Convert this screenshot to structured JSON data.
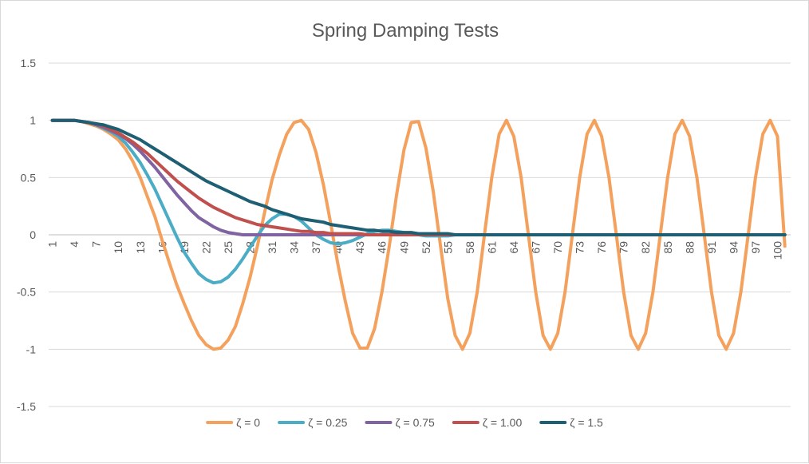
{
  "chart_data": {
    "type": "line",
    "title": "Spring Damping Tests",
    "xlabel": "",
    "ylabel": "",
    "ylim": [
      -1.5,
      1.5
    ],
    "yticks": [
      -1.5,
      -1,
      -0.5,
      0,
      0.5,
      1,
      1.5
    ],
    "ytick_labels": [
      "-1.5",
      "-1",
      "-0.5",
      "0",
      "0.5",
      "1",
      "1.5"
    ],
    "x": [
      1,
      2,
      3,
      4,
      5,
      6,
      7,
      8,
      9,
      10,
      11,
      12,
      13,
      14,
      15,
      16,
      17,
      18,
      19,
      20,
      21,
      22,
      23,
      24,
      25,
      26,
      27,
      28,
      29,
      30,
      31,
      32,
      33,
      34,
      35,
      36,
      37,
      38,
      39,
      40,
      41,
      42,
      43,
      44,
      45,
      46,
      47,
      48,
      49,
      50,
      51,
      52,
      53,
      54,
      55,
      56,
      57,
      58,
      59,
      60,
      61,
      62,
      63,
      64,
      65,
      66,
      67,
      68,
      69,
      70,
      71,
      72,
      73,
      74,
      75,
      76,
      77,
      78,
      79,
      80,
      81,
      82,
      83,
      84,
      85,
      86,
      87,
      88,
      89,
      90,
      91,
      92,
      93,
      94,
      95,
      96,
      97,
      98,
      99,
      100,
      101
    ],
    "xtick_labels": [
      "1",
      "4",
      "7",
      "10",
      "13",
      "16",
      "19",
      "22",
      "25",
      "28",
      "31",
      "34",
      "37",
      "40",
      "43",
      "46",
      "49",
      "52",
      "55",
      "58",
      "61",
      "64",
      "67",
      "70",
      "73",
      "76",
      "79",
      "82",
      "85",
      "88",
      "91",
      "94",
      "97",
      "100"
    ],
    "grid": true,
    "legend_position": "bottom",
    "series": [
      {
        "name": "ζ = 0",
        "color": "#f4a15d",
        "values": [
          1,
          1,
          1,
          1,
          0.99,
          0.97,
          0.95,
          0.92,
          0.88,
          0.83,
          0.75,
          0.64,
          0.5,
          0.33,
          0.16,
          -0.05,
          -0.25,
          -0.44,
          -0.6,
          -0.75,
          -0.88,
          -0.96,
          -1.0,
          -0.99,
          -0.92,
          -0.8,
          -0.6,
          -0.37,
          -0.1,
          0.2,
          0.48,
          0.7,
          0.88,
          0.98,
          1.0,
          0.92,
          0.72,
          0.44,
          0.1,
          -0.26,
          -0.58,
          -0.86,
          -0.99,
          -0.99,
          -0.82,
          -0.5,
          -0.1,
          0.35,
          0.74,
          0.98,
          0.99,
          0.76,
          0.38,
          -0.1,
          -0.56,
          -0.88,
          -1.0,
          -0.86,
          -0.5,
          0.0,
          0.5,
          0.88,
          1.0,
          0.86,
          0.5,
          0.0,
          -0.5,
          -0.88,
          -1.0,
          -0.86,
          -0.5,
          0.0,
          0.5,
          0.88,
          1.0,
          0.86,
          0.5,
          0.0,
          -0.5,
          -0.88,
          -1.0,
          -0.86,
          -0.5,
          0.0,
          0.5,
          0.88,
          1.0,
          0.86,
          0.5,
          0.0,
          -0.5,
          -0.88,
          -1.0,
          -0.86,
          -0.5,
          0.0,
          0.5,
          0.88,
          1.0,
          0.86,
          -0.1
        ]
      },
      {
        "name": "ζ = 0.25",
        "color": "#4bacc6",
        "values": [
          1,
          1,
          1,
          1,
          0.99,
          0.98,
          0.96,
          0.93,
          0.9,
          0.86,
          0.8,
          0.72,
          0.63,
          0.52,
          0.4,
          0.26,
          0.12,
          -0.02,
          -0.15,
          -0.25,
          -0.34,
          -0.39,
          -0.42,
          -0.41,
          -0.37,
          -0.3,
          -0.21,
          -0.11,
          -0.01,
          0.08,
          0.14,
          0.18,
          0.18,
          0.16,
          0.12,
          0.06,
          0.0,
          -0.04,
          -0.07,
          -0.08,
          -0.07,
          -0.05,
          -0.02,
          0.01,
          0.03,
          0.04,
          0.04,
          0.03,
          0.02,
          0.01,
          0.0,
          -0.01,
          -0.01,
          -0.01,
          -0.01,
          0.0,
          0.0,
          0.0,
          0.0,
          0.0,
          0.0,
          0.0,
          0.0,
          0.0,
          0.0,
          0.0,
          0.0,
          0.0,
          0.0,
          0.0,
          0.0,
          0.0,
          0.0,
          0.0,
          0.0,
          0.0,
          0.0,
          0.0,
          0.0,
          0.0,
          0.0,
          0.0,
          0.0,
          0.0,
          0.0,
          0.0,
          0.0,
          0.0,
          0.0,
          0.0,
          0.0,
          0.0,
          0.0,
          0.0,
          0.0,
          0.0,
          0.0,
          0.0,
          0.0,
          0.0,
          0.0
        ]
      },
      {
        "name": "ζ = 0.75",
        "color": "#8064a2",
        "values": [
          1,
          1,
          1,
          1,
          0.99,
          0.98,
          0.96,
          0.94,
          0.91,
          0.88,
          0.84,
          0.79,
          0.73,
          0.66,
          0.59,
          0.51,
          0.43,
          0.35,
          0.28,
          0.21,
          0.15,
          0.11,
          0.07,
          0.04,
          0.02,
          0.01,
          0.0,
          0.0,
          0.0,
          0.0,
          0.0,
          0.0,
          0.0,
          0.0,
          0.0,
          0.0,
          0.0,
          0.0,
          0.0,
          0.0,
          0.0,
          0.0,
          0.0,
          0.0,
          0.0,
          0.0,
          0.0,
          0.0,
          0.0,
          0.0,
          0.0,
          0.0,
          0.0,
          0.0,
          0.0,
          0.0,
          0.0,
          0.0,
          0.0,
          0.0,
          0.0,
          0.0,
          0.0,
          0.0,
          0.0,
          0.0,
          0.0,
          0.0,
          0.0,
          0.0,
          0.0,
          0.0,
          0.0,
          0.0,
          0.0,
          0.0,
          0.0,
          0.0,
          0.0,
          0.0,
          0.0,
          0.0,
          0.0,
          0.0,
          0.0,
          0.0,
          0.0,
          0.0,
          0.0,
          0.0,
          0.0,
          0.0,
          0.0,
          0.0,
          0.0,
          0.0,
          0.0,
          0.0,
          0.0,
          0.0,
          0.0
        ]
      },
      {
        "name": "ζ = 1.00",
        "color": "#c0504d",
        "values": [
          1,
          1,
          1,
          1,
          0.99,
          0.98,
          0.97,
          0.95,
          0.92,
          0.89,
          0.85,
          0.81,
          0.76,
          0.71,
          0.65,
          0.59,
          0.53,
          0.47,
          0.42,
          0.37,
          0.32,
          0.28,
          0.24,
          0.21,
          0.18,
          0.15,
          0.13,
          0.11,
          0.09,
          0.08,
          0.07,
          0.06,
          0.05,
          0.04,
          0.03,
          0.03,
          0.02,
          0.02,
          0.01,
          0.01,
          0.01,
          0.01,
          0.01,
          0.0,
          0.0,
          0.0,
          0.0,
          0.0,
          0.0,
          0.0,
          0.0,
          0.0,
          0.0,
          0.0,
          0.0,
          0.0,
          0.0,
          0.0,
          0.0,
          0.0,
          0.0,
          0.0,
          0.0,
          0.0,
          0.0,
          0.0,
          0.0,
          0.0,
          0.0,
          0.0,
          0.0,
          0.0,
          0.0,
          0.0,
          0.0,
          0.0,
          0.0,
          0.0,
          0.0,
          0.0,
          0.0,
          0.0,
          0.0,
          0.0,
          0.0,
          0.0,
          0.0,
          0.0,
          0.0,
          0.0,
          0.0,
          0.0,
          0.0,
          0.0,
          0.0,
          0.0,
          0.0,
          0.0,
          0.0,
          0.0,
          0.0
        ]
      },
      {
        "name": "ζ = 1.5",
        "color": "#1f5f73",
        "values": [
          1,
          1,
          1,
          1,
          0.99,
          0.98,
          0.97,
          0.96,
          0.94,
          0.92,
          0.89,
          0.86,
          0.83,
          0.79,
          0.75,
          0.71,
          0.67,
          0.63,
          0.59,
          0.55,
          0.51,
          0.47,
          0.44,
          0.41,
          0.38,
          0.35,
          0.32,
          0.29,
          0.27,
          0.25,
          0.22,
          0.2,
          0.18,
          0.16,
          0.14,
          0.13,
          0.12,
          0.11,
          0.09,
          0.08,
          0.07,
          0.06,
          0.05,
          0.04,
          0.04,
          0.03,
          0.03,
          0.02,
          0.02,
          0.02,
          0.01,
          0.01,
          0.01,
          0.01,
          0.01,
          0.0,
          0.0,
          0.0,
          0.0,
          0.0,
          0.0,
          0.0,
          0.0,
          0.0,
          0.0,
          0.0,
          0.0,
          0.0,
          0.0,
          0.0,
          0.0,
          0.0,
          0.0,
          0.0,
          0.0,
          0.0,
          0.0,
          0.0,
          0.0,
          0.0,
          0.0,
          0.0,
          0.0,
          0.0,
          0.0,
          0.0,
          0.0,
          0.0,
          0.0,
          0.0,
          0.0,
          0.0,
          0.0,
          0.0,
          0.0,
          0.0,
          0.0,
          0.0,
          0.0,
          0.0,
          0.0
        ]
      }
    ]
  }
}
